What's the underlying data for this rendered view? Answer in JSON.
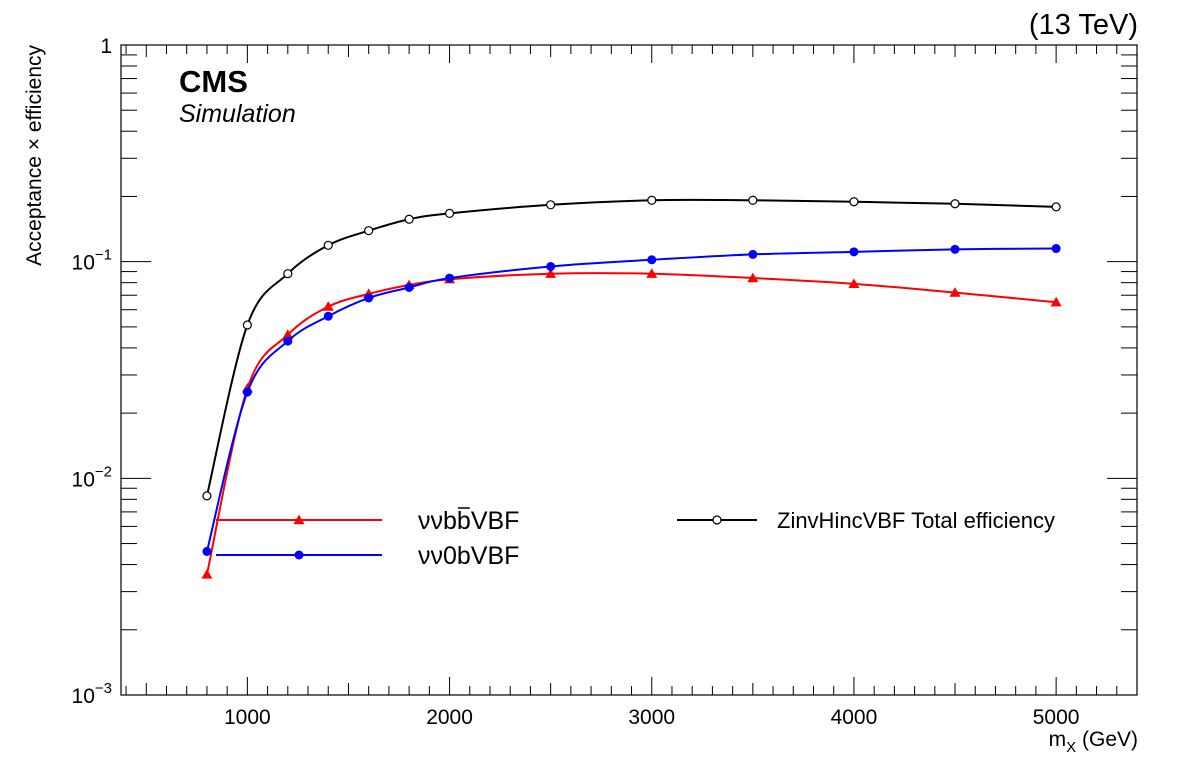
{
  "header": {
    "energy": "(13 TeV)"
  },
  "branding": {
    "experiment": "CMS",
    "subtitle": "Simulation"
  },
  "chart_data": {
    "type": "line",
    "x_scale": "linear",
    "y_scale": "log",
    "xlim": [
      375,
      5400
    ],
    "ylim": [
      0.001,
      1
    ],
    "xlabel_main": "m",
    "xlabel_sub": "X",
    "xlabel_unit": " (GeV)",
    "ylabel": "Acceptance × efficiency",
    "x_ticks": [
      1000,
      2000,
      3000,
      4000,
      5000
    ],
    "x_tick_labels": [
      "1000",
      "2000",
      "3000",
      "4000",
      "5000"
    ],
    "y_ticks": [
      {
        "value": 0.001,
        "base": "10",
        "exp": "−3"
      },
      {
        "value": 0.01,
        "base": "10",
        "exp": "−2"
      },
      {
        "value": 0.1,
        "base": "10",
        "exp": "−1"
      },
      {
        "value": 1,
        "base": "1",
        "exp": ""
      }
    ],
    "legend_position": "top-center",
    "series": [
      {
        "name_parts": [
          "νν",
          "b",
          "b",
          "VBF"
        ],
        "color": "#ff0000",
        "marker": "triangle",
        "x": [
          800,
          1000,
          1200,
          1400,
          1600,
          1800,
          2000,
          2500,
          3000,
          3500,
          4000,
          4500,
          5000
        ],
        "y": [
          0.0036,
          0.026,
          0.046,
          0.062,
          0.071,
          0.078,
          0.083,
          0.088,
          0.088,
          0.084,
          0.079,
          0.072,
          0.065
        ]
      },
      {
        "name": "νν0bVBF",
        "color": "#0000ff",
        "marker": "circle",
        "x": [
          800,
          1000,
          1200,
          1400,
          1600,
          1800,
          2000,
          2500,
          3000,
          3500,
          4000,
          4500,
          5000
        ],
        "y": [
          0.0046,
          0.025,
          0.043,
          0.056,
          0.068,
          0.076,
          0.084,
          0.095,
          0.102,
          0.108,
          0.111,
          0.114,
          0.115
        ]
      },
      {
        "name": "ZinvHincVBF Total efficiency",
        "color": "#000000",
        "marker": "open-circle",
        "x": [
          800,
          1000,
          1200,
          1400,
          1600,
          1800,
          2000,
          2500,
          3000,
          3500,
          4000,
          4500,
          5000
        ],
        "y": [
          0.0083,
          0.051,
          0.088,
          0.119,
          0.139,
          0.157,
          0.167,
          0.183,
          0.192,
          0.192,
          0.189,
          0.185,
          0.179
        ]
      }
    ]
  }
}
